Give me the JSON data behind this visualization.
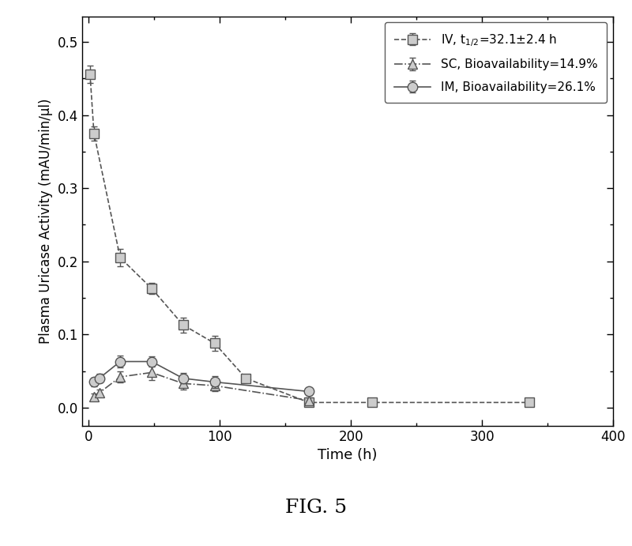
{
  "title": "FIG. 5",
  "xlabel": "Time (h)",
  "ylabel": "Plasma Uricase Activity (mAU/min/μl)",
  "xlim": [
    -5,
    400
  ],
  "ylim": [
    -0.025,
    0.535
  ],
  "xticks": [
    0,
    100,
    200,
    300,
    400
  ],
  "yticks": [
    0.0,
    0.1,
    0.2,
    0.3,
    0.4,
    0.5
  ],
  "iv": {
    "label": "IV, t$_{1/2}$=32.1±2.4 h",
    "x": [
      1,
      4,
      24,
      48,
      72,
      96,
      120,
      168,
      216,
      336
    ],
    "y": [
      0.456,
      0.375,
      0.205,
      0.163,
      0.113,
      0.088,
      0.04,
      0.007,
      0.007,
      0.007
    ],
    "yerr": [
      0.012,
      0.01,
      0.012,
      0.008,
      0.01,
      0.01,
      0.005,
      0.002,
      0.002,
      0.002
    ],
    "linestyle": "--",
    "marker": "s"
  },
  "sc": {
    "label": "SC, Bioavailability=14.9%",
    "x": [
      4,
      8,
      24,
      48,
      72,
      96,
      168
    ],
    "y": [
      0.015,
      0.02,
      0.042,
      0.048,
      0.033,
      0.03,
      0.01
    ],
    "yerr": [
      0.004,
      0.005,
      0.008,
      0.01,
      0.008,
      0.008,
      0.004
    ],
    "linestyle": "-.",
    "marker": "^"
  },
  "im": {
    "label": "IM, Bioavailability=26.1%",
    "x": [
      4,
      8,
      24,
      48,
      72,
      96,
      168
    ],
    "y": [
      0.035,
      0.04,
      0.063,
      0.063,
      0.04,
      0.035,
      0.022
    ],
    "yerr": [
      0.006,
      0.006,
      0.008,
      0.007,
      0.007,
      0.008,
      0.005
    ],
    "linestyle": "-",
    "marker": "o"
  },
  "line_color": "#555555",
  "legend_loc": "upper right",
  "background": "#ffffff",
  "figure_size": [
    8.0,
    6.91
  ]
}
